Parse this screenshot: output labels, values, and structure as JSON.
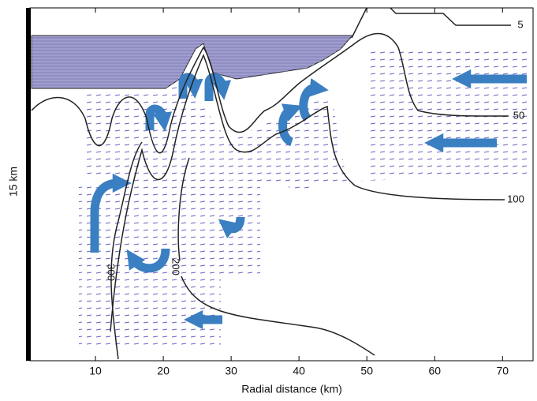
{
  "chart_data": {
    "type": "contour",
    "xlabel": "Radial distance (km)",
    "ylabel": "15 km",
    "xlim": [
      0,
      74.5
    ],
    "xticks": [
      10,
      20,
      30,
      40,
      50,
      60,
      70
    ],
    "contour_levels": [
      5,
      50,
      100,
      300,
      200
    ],
    "line_color": "#222222",
    "arrow_color": "#3a7fc1",
    "cloud_color": "#8f8dc2"
  }
}
